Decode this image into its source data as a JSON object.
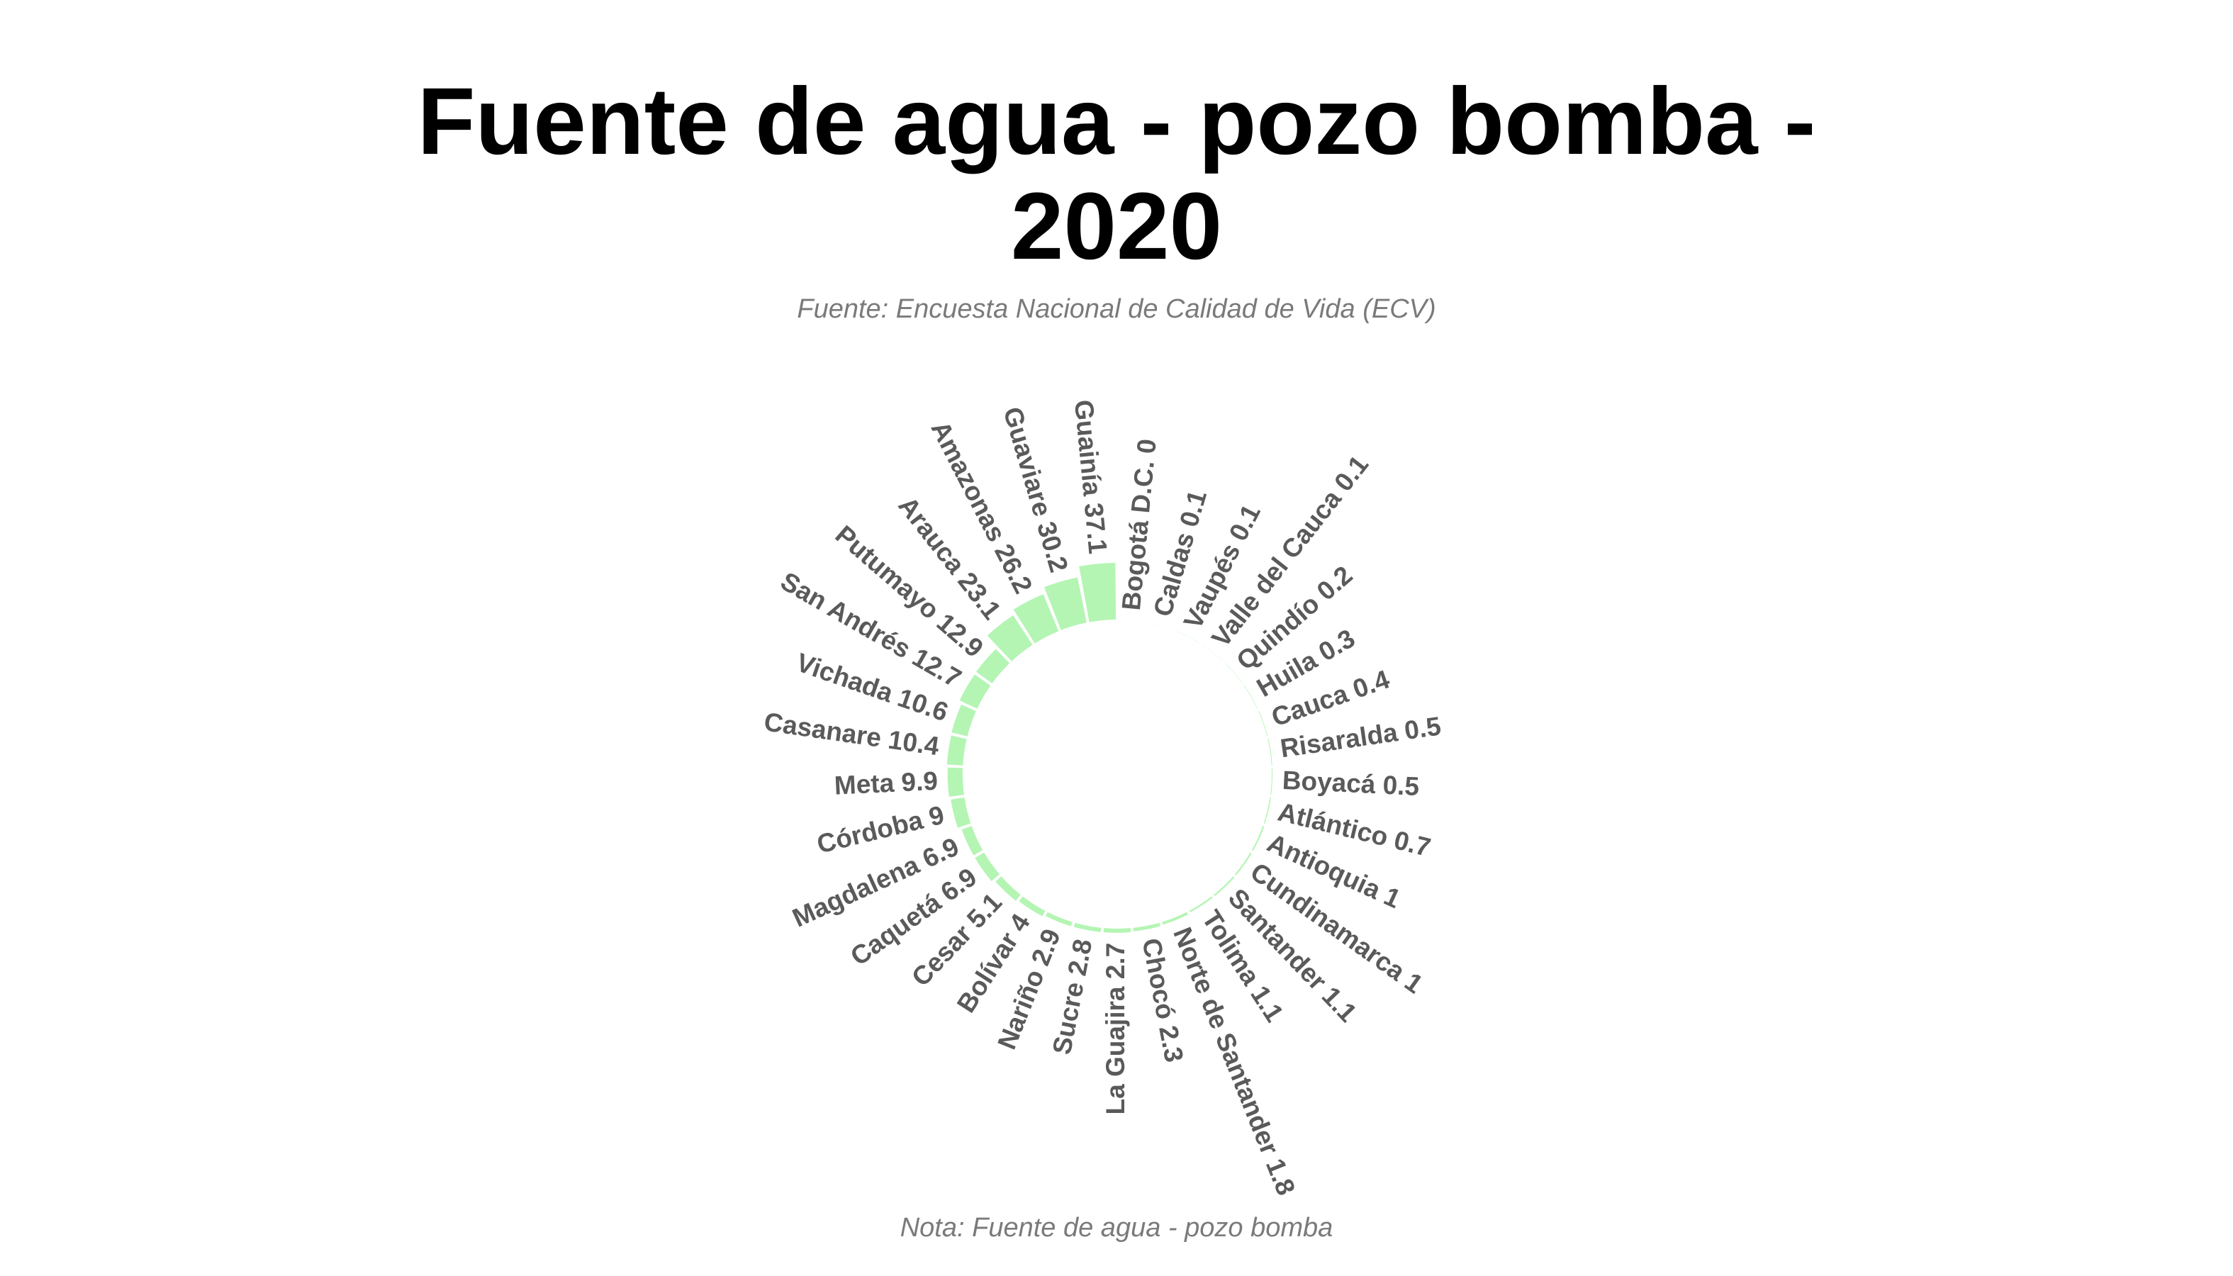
{
  "title_line1": "Fuente de agua - pozo bomba -",
  "title_line2": "2020",
  "subtitle": "Fuente: Encuesta Nacional de Calidad de Vida (ECV)",
  "note": "Nota: Fuente de agua - pozo bomba",
  "colors": {
    "bar": "#b4f5b4",
    "label": "#5a5a5a",
    "title": "#000000",
    "caption": "#7a7a7a"
  },
  "chart_data": {
    "type": "bar",
    "layout": "radial",
    "categories": [
      "Bogotá D.C.",
      "Caldas",
      "Vaupés",
      "Valle del Cauca",
      "Quindío",
      "Huila",
      "Cauca",
      "Risaralda",
      "Boyacá",
      "Atlántico",
      "Antioquia",
      "Cundinamarca",
      "Santander",
      "Tolima",
      "Norte de Santander",
      "Chocó",
      "La Guajira",
      "Sucre",
      "Nariño",
      "Bolívar",
      "Cesar",
      "Caquetá",
      "Magdalena",
      "Córdoba",
      "Meta",
      "Casanare",
      "Vichada",
      "San Andrés",
      "Putumayo",
      "Arauca",
      "Amazonas",
      "Guaviare",
      "Guainía"
    ],
    "values": [
      0,
      0.1,
      0.1,
      0.1,
      0.2,
      0.3,
      0.4,
      0.5,
      0.5,
      0.7,
      1,
      1,
      1.1,
      1.1,
      1.8,
      2.3,
      2.7,
      2.8,
      2.9,
      4,
      5.1,
      6.9,
      6.9,
      9,
      9.9,
      10.4,
      10.6,
      12.7,
      12.9,
      23.1,
      26.2,
      30.2,
      37.1
    ],
    "title": "Fuente de agua - pozo bomba - 2020",
    "subtitle": "Fuente: Encuesta Nacional de Calidad de Vida (ECV)",
    "caption": "Nota: Fuente de agua - pozo bomba",
    "legend": "none",
    "grid": false
  }
}
